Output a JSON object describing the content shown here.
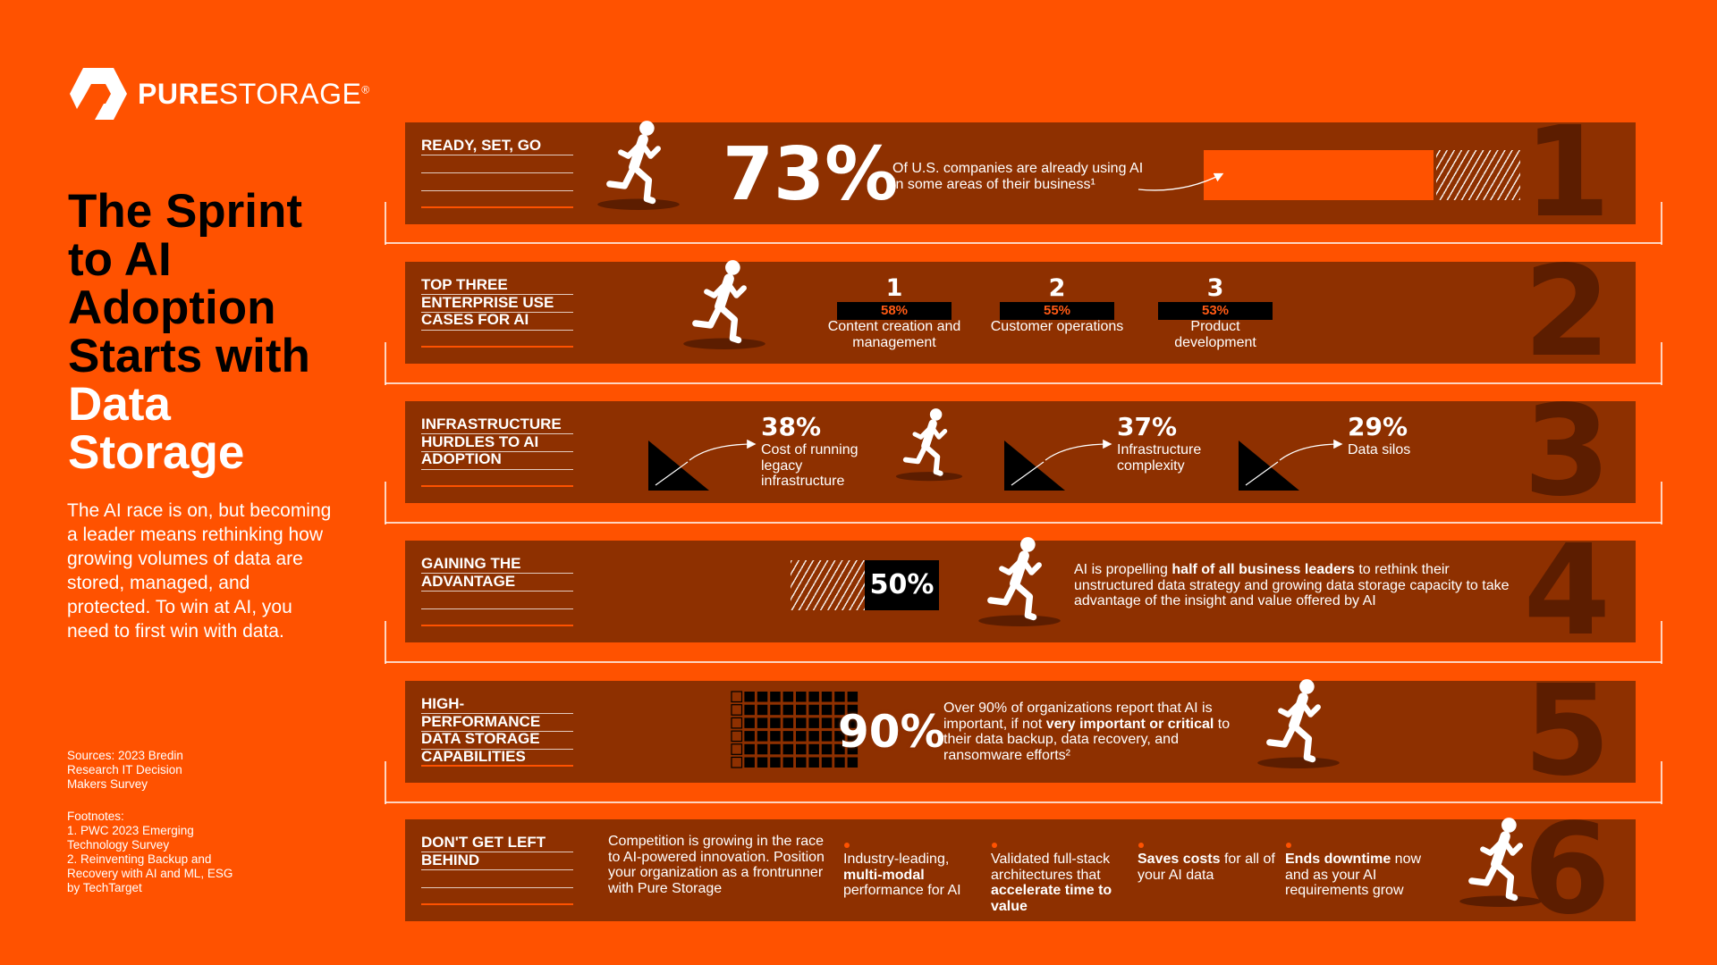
{
  "logo": {
    "bold": "PURE",
    "regular": "STORAGE",
    "mark": "®"
  },
  "title": [
    "The Sprint to AI Adoption Starts with ",
    "Data Storage"
  ],
  "intro": "The AI race is on, but becoming a leader means rethinking how growing volumes of data are stored, managed, and protected. To win at AI, you need to first win with data.",
  "sources": "Sources: 2023 Bredin Research IT Decision Makers Survey",
  "footnotes": {
    "heading": "Footnotes:",
    "items": [
      "1. PWC 2023 Emerging Technology Survey",
      "2. Reinventing Backup and Recovery with AI and ML, ESG by TechTarget"
    ]
  },
  "rows": [
    {
      "number": "1",
      "label": "READY, SET, GO",
      "stat": "73%",
      "text": "Of U.S. companies are already using AI in some areas of their business¹"
    },
    {
      "number": "2",
      "label": "TOP THREE ENTERPRISE USE CASES FOR AI",
      "items": [
        {
          "rank": "1",
          "percent": "58%",
          "text": "Content creation and management"
        },
        {
          "rank": "2",
          "percent": "55%",
          "text": "Customer operations"
        },
        {
          "rank": "3",
          "percent": "53%",
          "text": "Product development"
        }
      ]
    },
    {
      "number": "3",
      "label": "INFRASTRUCTURE HURDLES TO AI ADOPTION",
      "items": [
        {
          "percent": "38%",
          "text": "Cost of running legacy infrastructure"
        },
        {
          "percent": "37%",
          "text": "Infrastructure complexity"
        },
        {
          "percent": "29%",
          "text": "Data silos"
        }
      ]
    },
    {
      "number": "4",
      "label": "GAINING THE ADVANTAGE",
      "stat": "50%",
      "text": [
        "AI is propelling ",
        "half of all business leaders",
        " to rethink their unstructured data strategy and growing data storage capacity to take advantage of the insight and value offered by AI"
      ]
    },
    {
      "number": "5",
      "label": "HIGH-PERFORMANCE DATA STORAGE CAPABILITIES",
      "stat": "90%",
      "text": [
        "Over 90% of organizations report that AI is important, if not ",
        "very important or critical",
        " to their data backup, data recovery, and ransomware efforts²"
      ]
    },
    {
      "number": "6",
      "label": "DON'T GET LEFT BEHIND",
      "text": "Competition is growing in the race to AI-powered innovation. Position your organization as a frontrunner with Pure Storage",
      "items": [
        [
          "Industry-leading, ",
          "multi-modal",
          " performance for AI"
        ],
        [
          "Validated full-stack architectures that ",
          "accelerate time to value"
        ],
        [
          "Saves costs",
          " for all of your AI data"
        ],
        [
          "Ends downtime",
          " now and as your AI requirements grow"
        ]
      ]
    }
  ]
}
